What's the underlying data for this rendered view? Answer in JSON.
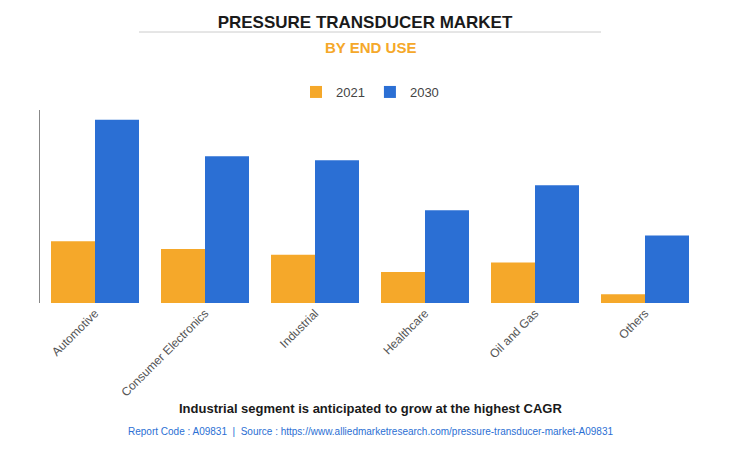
{
  "chart_data": {
    "type": "bar",
    "title": "PRESSURE TRANSDUCER MARKET",
    "subtitle": "BY END USE",
    "categories": [
      "Automotive",
      "Consumer Electronics",
      "Industrial",
      "Healthcare",
      "Oil and Gas",
      "Others"
    ],
    "series": [
      {
        "name": "2021",
        "color": "#F5A82A",
        "values": [
          3.2,
          2.8,
          2.5,
          1.6,
          2.1,
          0.45
        ]
      },
      {
        "name": "2030",
        "color": "#2B6FD4",
        "values": [
          9.5,
          7.6,
          7.4,
          4.8,
          6.1,
          3.5
        ]
      }
    ],
    "ylim": [
      0,
      10
    ],
    "grid": false,
    "tick_labels": "x",
    "legend": "top",
    "annotations": [
      "Industrial segment is anticipated to grow at the highest CAGR",
      "Report Code : A09831  |  Source : https://www.alliedmarketresearch.com/pressure-transducer-market-A09831"
    ]
  }
}
